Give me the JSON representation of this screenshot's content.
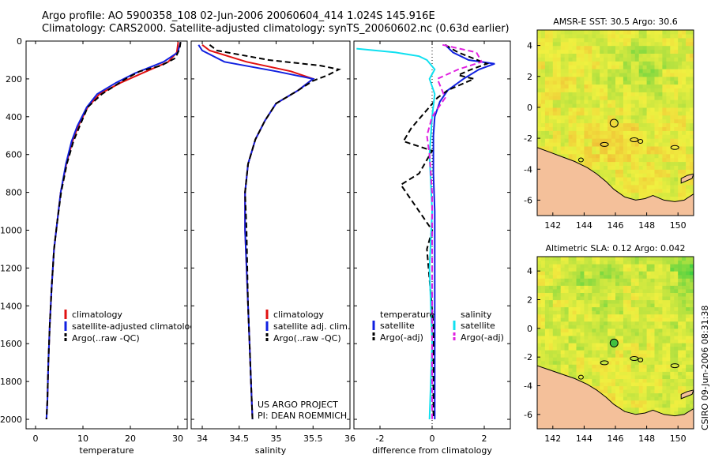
{
  "header": {
    "line1": "Argo profile: AO 5900358_108 02-Jun-2006 20060604_414 1.024S 145.916E",
    "line2": "Climatology: CARS2000. Satellite-adjusted climatology: synTS_20060602.nc (0.63d earlier)"
  },
  "side_label": "CSIRO 09-Jun-2006 08:31:38",
  "colors": {
    "climatology": "#e01010",
    "satellite": "#1020e0",
    "argo": "#000000",
    "cyan": "#10e0f0",
    "magenta": "#e020e0",
    "land": "#f4c09a"
  },
  "chart_data": [
    {
      "type": "line",
      "id": "temperature",
      "xlabel": "temperature",
      "xlim": [
        -2,
        32
      ],
      "xticks": [
        0,
        10,
        20,
        30
      ],
      "ylim": [
        2050,
        0
      ],
      "yticks": [
        0,
        200,
        400,
        600,
        800,
        1000,
        1200,
        1400,
        1600,
        1800,
        2000
      ],
      "legend": [
        "climatology",
        "satellite-adjusted climatology",
        "Argo(..raw -QC)"
      ],
      "series": [
        {
          "name": "climatology",
          "color": "climatology",
          "dash": false,
          "x": [
            30.1,
            29.8,
            28.0,
            22.5,
            18.0,
            13.5,
            11.0,
            9.0,
            7.8,
            6.5,
            5.3,
            4.6,
            3.9,
            3.4,
            3.0,
            2.7,
            2.5,
            2.3
          ],
          "y": [
            5,
            60,
            110,
            170,
            220,
            280,
            350,
            450,
            530,
            650,
            800,
            950,
            1100,
            1300,
            1500,
            1700,
            1900,
            2000
          ]
        },
        {
          "name": "satellite-adjusted climatology",
          "color": "satellite",
          "dash": false,
          "x": [
            30.6,
            30.0,
            27.0,
            21.0,
            17.0,
            13.0,
            10.8,
            8.8,
            7.6,
            6.4,
            5.3,
            4.6,
            3.9,
            3.4,
            3.0,
            2.7,
            2.5,
            2.3
          ],
          "y": [
            5,
            60,
            110,
            170,
            220,
            280,
            350,
            450,
            530,
            650,
            800,
            950,
            1100,
            1300,
            1500,
            1700,
            1900,
            2000
          ]
        },
        {
          "name": "Argo(..raw -QC)",
          "color": "argo",
          "dash": true,
          "x": [
            30.6,
            30.4,
            29.5,
            26.5,
            22.0,
            19.0,
            14.0,
            11.0,
            9.3,
            8.0,
            6.6,
            5.4,
            4.6,
            3.9,
            3.4,
            3.0,
            2.7,
            2.5,
            2.3
          ],
          "y": [
            5,
            40,
            90,
            130,
            160,
            200,
            280,
            350,
            450,
            530,
            650,
            800,
            950,
            1100,
            1300,
            1500,
            1700,
            1900,
            2000
          ]
        }
      ]
    },
    {
      "type": "line",
      "id": "salinity",
      "xlabel": "salinity",
      "xlim": [
        33.85,
        36.0
      ],
      "xticks": [
        34,
        34.5,
        35,
        35.5,
        36
      ],
      "ylim": [
        2050,
        0
      ],
      "legend": [
        "climatology",
        "satellite adj. clim.",
        "Argo(..raw -QC)"
      ],
      "series": [
        {
          "name": "climatology",
          "color": "climatology",
          "dash": false,
          "x": [
            34.0,
            34.1,
            34.6,
            35.2,
            35.5,
            35.3,
            35.0,
            34.85,
            34.72,
            34.62,
            34.58,
            34.58,
            34.6,
            34.62,
            34.64,
            34.66,
            34.68
          ],
          "y": [
            20,
            50,
            110,
            160,
            200,
            260,
            330,
            420,
            520,
            650,
            800,
            1000,
            1200,
            1400,
            1600,
            1800,
            2000
          ]
        },
        {
          "name": "satellite adj. clim.",
          "color": "satellite",
          "dash": false,
          "x": [
            33.95,
            34.0,
            34.3,
            35.0,
            35.5,
            35.3,
            35.0,
            34.85,
            34.72,
            34.62,
            34.58,
            34.58,
            34.6,
            34.62,
            34.64,
            34.66,
            34.68
          ],
          "y": [
            20,
            50,
            110,
            160,
            200,
            260,
            330,
            420,
            520,
            650,
            800,
            1000,
            1200,
            1400,
            1600,
            1800,
            2000
          ]
        },
        {
          "name": "Argo(..raw -QC)",
          "color": "argo",
          "dash": true,
          "x": [
            34.1,
            34.2,
            34.9,
            35.6,
            35.85,
            35.7,
            35.5,
            35.3,
            35.0,
            34.85,
            34.72,
            34.62,
            34.58,
            34.6,
            34.62,
            34.64,
            34.66,
            34.68
          ],
          "y": [
            20,
            50,
            100,
            130,
            150,
            180,
            210,
            260,
            330,
            420,
            520,
            650,
            800,
            1000,
            1400,
            1600,
            1800,
            2000
          ]
        }
      ]
    },
    {
      "type": "line",
      "id": "difference",
      "xlabel": "difference from climatology",
      "xlim": [
        -3,
        3
      ],
      "xticks": [
        -2,
        0,
        2
      ],
      "ylim": [
        2050,
        0
      ],
      "legend_temperature_title": "temperature",
      "legend_salinity_title": "salinity",
      "legend_temperature": [
        "satellite",
        "Argo(-adj)"
      ],
      "legend_salinity": [
        "satellite",
        "Argo(-adj)"
      ],
      "series": [
        {
          "name": "temperature satellite",
          "color": "satellite",
          "dash": false,
          "x": [
            0.5,
            0.8,
            1.4,
            2.4,
            1.8,
            1.2,
            0.6,
            0.3,
            0.1,
            0.05,
            0.05,
            0.1,
            0.1,
            0.1,
            0.1,
            0.1
          ],
          "y": [
            20,
            60,
            100,
            120,
            150,
            200,
            260,
            320,
            400,
            500,
            700,
            900,
            1200,
            1500,
            1800,
            2000
          ]
        },
        {
          "name": "temperature Argo(-adj)",
          "color": "argo",
          "dash": true,
          "x": [
            0.5,
            1.0,
            2.1,
            1.5,
            1.0,
            1.6,
            0.6,
            0.2,
            -0.8,
            -1.1,
            0.0,
            -0.5,
            -1.2,
            0.0,
            -0.2,
            0.05,
            0.05
          ],
          "y": [
            20,
            60,
            120,
            150,
            180,
            200,
            260,
            300,
            460,
            530,
            580,
            700,
            760,
            1000,
            1100,
            1500,
            2000
          ]
        },
        {
          "name": "salinity satellite",
          "color": "cyan",
          "dash": false,
          "x": [
            -2.9,
            -1.4,
            -0.5,
            -0.2,
            0.1,
            -0.1,
            0.1,
            0.0,
            -0.1,
            0.0,
            -0.1,
            0.0,
            -0.1
          ],
          "y": [
            40,
            60,
            80,
            100,
            150,
            200,
            280,
            400,
            600,
            900,
            1200,
            1600,
            2000
          ]
        },
        {
          "name": "salinity Argo(-adj)",
          "color": "magenta",
          "dash": true,
          "x": [
            0.4,
            1.7,
            1.9,
            1.0,
            0.2,
            0.5,
            0.0,
            -0.2,
            -0.1,
            0.0,
            0.0,
            0.0,
            0.0
          ],
          "y": [
            20,
            60,
            110,
            150,
            200,
            300,
            400,
            500,
            600,
            800,
            1200,
            1600,
            2000
          ]
        }
      ]
    },
    {
      "type": "heatmap",
      "id": "sst-map",
      "title": "AMSR-E SST: 30.5 Argo: 30.6",
      "xlim": [
        141,
        151
      ],
      "ylim": [
        -7,
        5
      ],
      "xticks": [
        142,
        144,
        146,
        148,
        150
      ],
      "yticks": [
        -6,
        -4,
        -2,
        0,
        2,
        4
      ],
      "argo_position": [
        145.916,
        -1.024
      ]
    },
    {
      "type": "heatmap",
      "id": "sla-map",
      "title": "Altimetric SLA: 0.12 Argo: 0.042",
      "xlim": [
        141,
        151
      ],
      "ylim": [
        -7,
        5
      ],
      "xticks": [
        142,
        144,
        146,
        148,
        150
      ],
      "yticks": [
        -6,
        -4,
        -2,
        0,
        2,
        4
      ],
      "argo_position": [
        145.916,
        -1.024
      ]
    }
  ],
  "annotation": {
    "line1": "US ARGO PROJECT",
    "line2": "PI: DEAN ROEMMICH"
  }
}
